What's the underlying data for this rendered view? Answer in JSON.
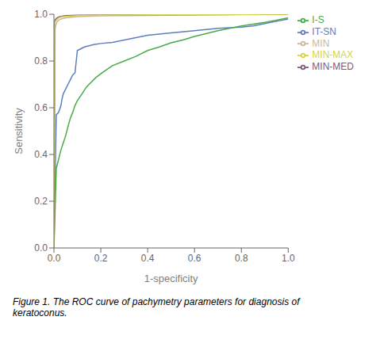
{
  "chart_data": {
    "type": "line",
    "caption": "Figure 1. The ROC curve of pachymetry parameters for diagnosis of\nkeratoconus.",
    "x_label": "1-specificity",
    "y_label": "Sensitivity",
    "xlim": [
      0.0,
      1.0
    ],
    "ylim": [
      0.0,
      1.0
    ],
    "xticks": [
      {
        "value": 0,
        "label": "0.0"
      },
      0.2,
      0.4,
      0.6,
      0.8,
      {
        "value": 1,
        "label": "1.0"
      }
    ],
    "yticks": [
      {
        "value": 0,
        "label": "0.0"
      },
      0.2,
      0.4,
      0.6,
      0.8,
      {
        "value": 1,
        "label": "1.0"
      }
    ],
    "grid": false,
    "legend": "right",
    "series": [
      {
        "name": "IT-SN",
        "color": "#5b7fbf",
        "x": [
          0.0,
          0.01,
          0.015,
          0.02,
          0.025,
          0.03,
          0.035,
          0.04,
          0.05,
          0.06,
          0.07,
          0.08,
          0.09,
          0.1,
          0.11,
          0.12,
          0.13,
          0.15,
          0.17,
          0.2,
          0.25,
          0.3,
          0.35,
          0.4,
          0.45,
          0.5,
          0.6,
          0.7,
          0.75,
          0.8,
          0.85,
          0.9,
          0.95,
          1.0
        ],
        "values": [
          0.0,
          0.57,
          0.575,
          0.58,
          0.595,
          0.61,
          0.64,
          0.66,
          0.68,
          0.7,
          0.72,
          0.74,
          0.75,
          0.845,
          0.85,
          0.855,
          0.86,
          0.865,
          0.87,
          0.875,
          0.88,
          0.89,
          0.9,
          0.91,
          0.915,
          0.92,
          0.93,
          0.94,
          0.942,
          0.945,
          0.95,
          0.96,
          0.97,
          0.98
        ]
      },
      {
        "name": "I-S",
        "color": "#4aaa4a",
        "x": [
          0.0,
          0.01,
          0.02,
          0.03,
          0.04,
          0.05,
          0.06,
          0.07,
          0.08,
          0.09,
          0.1,
          0.12,
          0.14,
          0.16,
          0.18,
          0.2,
          0.22,
          0.25,
          0.3,
          0.35,
          0.4,
          0.45,
          0.5,
          0.55,
          0.6,
          0.7,
          0.8,
          0.9,
          0.95,
          1.0
        ],
        "values": [
          0.0,
          0.34,
          0.38,
          0.42,
          0.45,
          0.48,
          0.52,
          0.555,
          0.58,
          0.61,
          0.63,
          0.66,
          0.69,
          0.71,
          0.73,
          0.745,
          0.76,
          0.78,
          0.8,
          0.82,
          0.845,
          0.86,
          0.878,
          0.89,
          0.905,
          0.93,
          0.95,
          0.965,
          0.975,
          0.985
        ]
      },
      {
        "name": "MIN",
        "color": "#c9b99a",
        "x": [
          0.0,
          0.005,
          0.01,
          0.015,
          0.02,
          0.03,
          0.05,
          0.1,
          0.2,
          0.5,
          0.8,
          1.0
        ],
        "values": [
          0.0,
          0.94,
          0.96,
          0.97,
          0.975,
          0.98,
          0.985,
          0.99,
          0.993,
          0.996,
          0.998,
          1.0
        ]
      },
      {
        "name": "MIN-MED",
        "color": "#7a5a7a",
        "x": [
          0.0,
          0.003,
          0.005,
          0.01,
          0.015,
          0.02,
          0.03,
          0.05,
          0.1,
          0.2,
          0.5,
          0.8,
          1.0
        ],
        "values": [
          0.0,
          0.96,
          0.975,
          0.982,
          0.985,
          0.988,
          0.991,
          0.994,
          0.996,
          0.997,
          0.998,
          0.999,
          1.0
        ]
      },
      {
        "name": "MIN-MAX",
        "color": "#d4d448",
        "x": [
          0.0,
          0.003,
          0.005,
          0.01,
          0.015,
          0.02,
          0.03,
          0.05,
          0.1,
          0.2,
          0.5,
          0.8,
          1.0
        ],
        "values": [
          0.0,
          0.95,
          0.965,
          0.975,
          0.98,
          0.984,
          0.988,
          0.991,
          0.994,
          0.996,
          0.998,
          0.999,
          1.0
        ]
      }
    ]
  }
}
